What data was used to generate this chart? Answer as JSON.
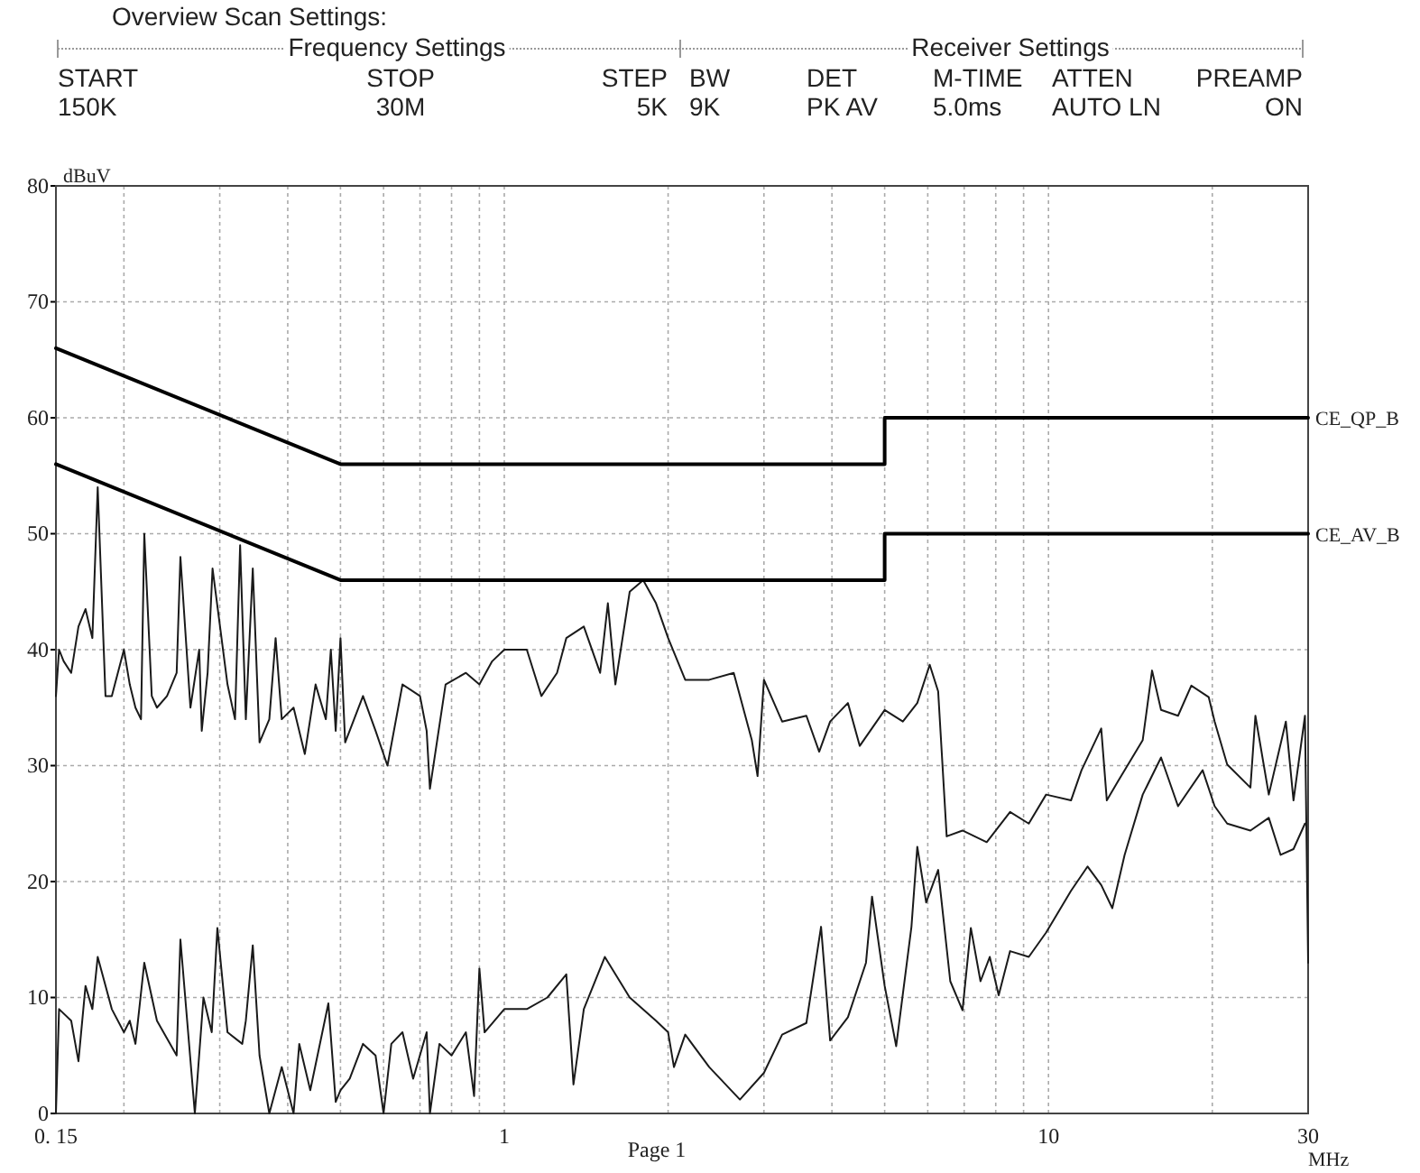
{
  "chart_data": {
    "type": "line",
    "xlabel": "MHz",
    "ylabel": "dBuV",
    "log": "x",
    "grid": true,
    "legend": false,
    "marker": "none",
    "line_style": "solid",
    "xlim": [
      0.15,
      30
    ],
    "ylim": [
      0,
      80
    ],
    "xticks": [
      {
        "value": 0.15,
        "label": "0. 15"
      },
      {
        "value": 0.2,
        "label": null
      },
      {
        "value": 0.3,
        "label": null
      },
      {
        "value": 0.4,
        "label": null
      },
      {
        "value": 0.5,
        "label": null
      },
      {
        "value": 0.6,
        "label": null
      },
      {
        "value": 0.7,
        "label": null
      },
      {
        "value": 0.8,
        "label": null
      },
      {
        "value": 0.9,
        "label": null
      },
      1,
      {
        "value": 2,
        "label": null
      },
      {
        "value": 3,
        "label": null
      },
      {
        "value": 4,
        "label": null
      },
      {
        "value": 5,
        "label": null
      },
      {
        "value": 6,
        "label": null
      },
      {
        "value": 7,
        "label": null
      },
      {
        "value": 8,
        "label": null
      },
      {
        "value": 9,
        "label": null
      },
      10,
      {
        "value": 20,
        "label": null
      },
      30
    ],
    "yticks": [
      0,
      10,
      20,
      30,
      40,
      50,
      60,
      70,
      80
    ],
    "annotations": [
      "Overview Scan Settings:",
      "Frequency Settings",
      "Receiver  Settings",
      "START",
      "STOP",
      "STEP",
      "BW",
      "DET",
      "M-TIME",
      "ATTEN",
      "PREAMP",
      "150K",
      "30M",
      "5K",
      "9K",
      "PK AV",
      "5.0ms",
      "AUTO LN",
      "ON",
      "Page 1"
    ],
    "series": [
      {
        "color": "#1a1a1a",
        "x": [
          0.15,
          0.152,
          0.155,
          0.16,
          0.165,
          0.17,
          0.175,
          0.179,
          0.185,
          0.19,
          0.2,
          0.205,
          0.21,
          0.215,
          0.218,
          0.225,
          0.23,
          0.24,
          0.25,
          0.254,
          0.265,
          0.275,
          0.278,
          0.285,
          0.291,
          0.31,
          0.32,
          0.327,
          0.335,
          0.345,
          0.355,
          0.37,
          0.38,
          0.39,
          0.41,
          0.43,
          0.45,
          0.47,
          0.48,
          0.49,
          0.5,
          0.51,
          0.55,
          0.58,
          0.61,
          0.65,
          0.7,
          0.72,
          0.73,
          0.78,
          0.85,
          0.9,
          0.95,
          1.0,
          1.1,
          1.17,
          1.25,
          1.3,
          1.4,
          1.5,
          1.55,
          1.6,
          1.7,
          1.8,
          1.9,
          2.0,
          2.15,
          2.38,
          2.64,
          2.85,
          2.92,
          3.0,
          3.24,
          3.59,
          3.79,
          3.97,
          4.28,
          4.5,
          5.0,
          5.4,
          5.74,
          6.05,
          6.27,
          6.5,
          6.95,
          7.7,
          8.5,
          9.2,
          9.9,
          11.0,
          11.5,
          12.5,
          12.8,
          13.4,
          14.9,
          15.5,
          16.1,
          17.3,
          18.3,
          19.7,
          20.2,
          21.3,
          23.5,
          24.0,
          25.4,
          27.3,
          28.2,
          29.6,
          30
        ],
        "values": [
          36,
          40,
          39,
          38,
          42,
          43.5,
          41,
          54,
          36,
          36,
          40,
          37,
          35,
          34,
          50,
          36,
          35,
          36,
          38,
          48,
          35,
          40,
          33,
          38,
          47,
          37,
          34,
          49,
          34,
          47,
          32,
          34,
          41,
          34,
          35,
          31,
          37,
          34,
          40,
          33,
          41,
          32,
          36,
          33,
          30,
          37,
          36,
          33,
          28,
          37,
          38,
          37,
          39,
          40,
          40,
          36,
          38,
          41,
          42,
          38,
          44,
          37,
          45,
          46,
          44,
          41,
          37.4,
          37.4,
          38,
          32.2,
          29.1,
          37.4,
          33.8,
          34.3,
          31.2,
          33.8,
          35.4,
          31.7,
          34.8,
          33.8,
          35.4,
          38.7,
          36.4,
          23.9,
          24.4,
          23.4,
          26,
          25,
          27.5,
          27,
          29.6,
          33.2,
          27,
          28.6,
          32.2,
          38.2,
          34.8,
          34.3,
          36.9,
          35.9,
          33.8,
          30.1,
          28.1,
          34.3,
          27.5,
          33.8,
          27,
          34.3,
          13
        ]
      },
      {
        "color": "#1a1a1a",
        "x": [
          0.15,
          0.152,
          0.16,
          0.165,
          0.17,
          0.175,
          0.179,
          0.19,
          0.2,
          0.205,
          0.21,
          0.218,
          0.23,
          0.25,
          0.254,
          0.27,
          0.28,
          0.29,
          0.297,
          0.31,
          0.33,
          0.335,
          0.345,
          0.355,
          0.37,
          0.39,
          0.41,
          0.42,
          0.44,
          0.475,
          0.49,
          0.5,
          0.52,
          0.55,
          0.58,
          0.6,
          0.62,
          0.65,
          0.68,
          0.72,
          0.73,
          0.76,
          0.8,
          0.85,
          0.88,
          0.9,
          0.92,
          1.0,
          1.1,
          1.2,
          1.3,
          1.34,
          1.4,
          1.53,
          1.7,
          1.9,
          2.0,
          2.05,
          2.15,
          2.38,
          2.71,
          3.0,
          3.24,
          3.59,
          3.82,
          3.97,
          4.28,
          4.62,
          4.74,
          5.0,
          5.25,
          5.6,
          5.74,
          5.96,
          6.27,
          6.6,
          6.95,
          7.2,
          7.5,
          7.8,
          8.1,
          8.5,
          9.2,
          9.9,
          11.0,
          11.8,
          12.5,
          13.1,
          13.8,
          14.9,
          16.1,
          17.3,
          19.2,
          20.2,
          21.3,
          23.5,
          25.4,
          26.7,
          28.2,
          29.6
        ],
        "values": [
          0,
          9,
          8,
          4.5,
          11,
          9,
          13.5,
          9,
          7,
          8,
          6,
          13,
          8,
          5,
          15,
          0,
          10,
          7,
          16,
          7,
          6,
          8,
          14.5,
          5,
          0,
          4,
          0,
          6,
          2,
          9.5,
          1,
          2,
          3,
          6,
          5,
          0,
          6,
          7,
          3,
          7,
          0,
          6,
          5,
          7,
          1.5,
          12.5,
          7,
          9,
          9,
          10,
          12,
          2.5,
          9,
          13.5,
          10,
          8,
          7,
          4,
          6.8,
          4,
          1.2,
          3.5,
          6.8,
          7.8,
          16.1,
          6.3,
          8.3,
          13,
          18.7,
          11,
          5.8,
          16.1,
          23,
          18.2,
          21,
          11.4,
          8.9,
          16,
          11.4,
          13.5,
          10.2,
          14,
          13.5,
          15.6,
          19.2,
          21.3,
          19.7,
          17.7,
          22.3,
          27.5,
          30.7,
          26.5,
          29.6,
          26.5,
          25,
          24.4,
          25.5,
          22.3,
          22.8,
          25
        ]
      },
      {
        "name": "CE_QP_B",
        "color": "#000000",
        "x": [
          0.15,
          0.5,
          5,
          5,
          30
        ],
        "values": [
          66,
          56,
          56,
          60,
          60
        ]
      },
      {
        "name": "CE_AV_B",
        "color": "#000000",
        "x": [
          0.15,
          0.5,
          5,
          5,
          30
        ],
        "values": [
          56,
          46,
          46,
          50,
          50
        ]
      }
    ]
  }
}
